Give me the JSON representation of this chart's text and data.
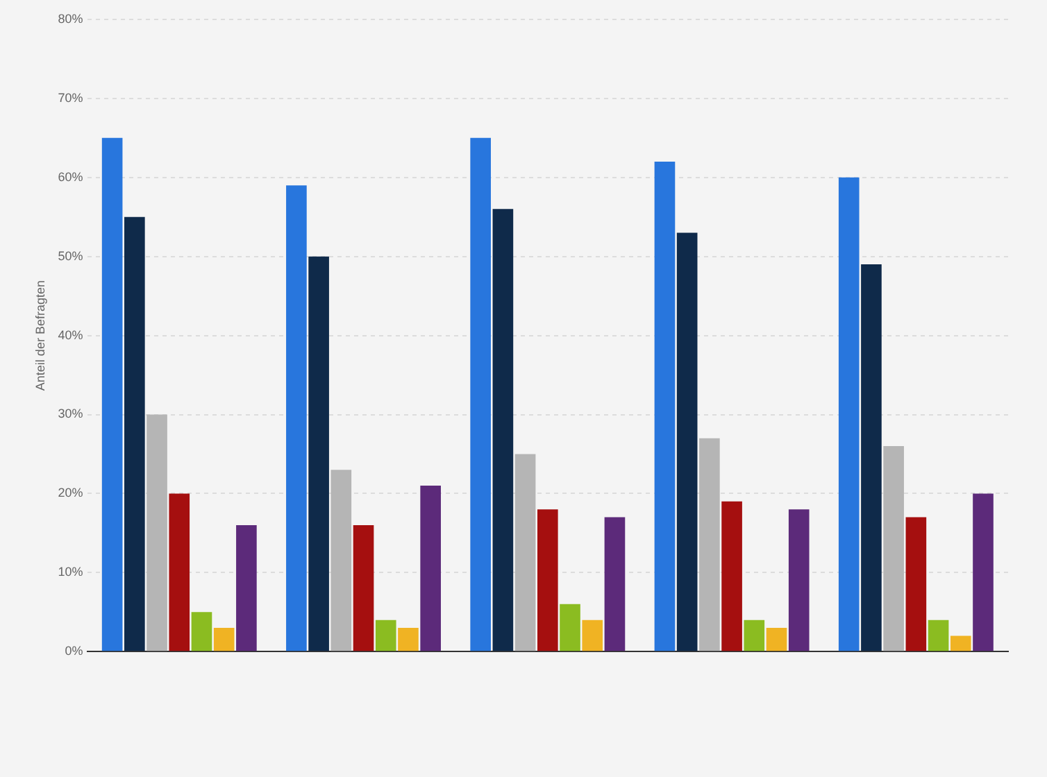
{
  "chart_data": {
    "type": "bar",
    "ylabel": "Anteil der Befragten",
    "categories": [
      null,
      null,
      null,
      null,
      null
    ],
    "series": [
      {
        "color": "#2876dd",
        "values": [
          65,
          59,
          65,
          62,
          60
        ]
      },
      {
        "color": "#0f2a4a",
        "values": [
          55,
          50,
          56,
          53,
          49
        ]
      },
      {
        "color": "#b5b5b5",
        "values": [
          30,
          23,
          25,
          27,
          26
        ]
      },
      {
        "color": "#a50f0f",
        "values": [
          20,
          16,
          18,
          19,
          17
        ]
      },
      {
        "color": "#8bbc21",
        "values": [
          5,
          4,
          6,
          4,
          4
        ]
      },
      {
        "color": "#f0b323",
        "values": [
          3,
          3,
          4,
          3,
          2
        ]
      },
      {
        "color": "#5c2a7a",
        "values": [
          16,
          21,
          17,
          18,
          20
        ]
      }
    ],
    "ylim": [
      0,
      80
    ],
    "yticks": [
      {
        "value": 0,
        "label": "0%"
      },
      {
        "value": 10,
        "label": "10%"
      },
      {
        "value": 20,
        "label": "20%"
      },
      {
        "value": 30,
        "label": "30%"
      },
      {
        "value": 40,
        "label": "40%"
      },
      {
        "value": 50,
        "label": "50%"
      },
      {
        "value": 60,
        "label": "60%"
      },
      {
        "value": 70,
        "label": "70%"
      },
      {
        "value": 80,
        "label": "80%"
      }
    ],
    "grid": "y",
    "legend": false
  }
}
